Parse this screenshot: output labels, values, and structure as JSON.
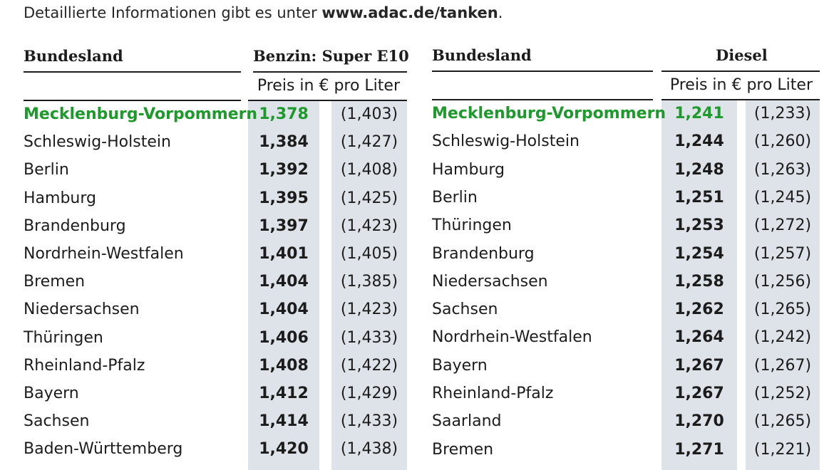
{
  "intro": {
    "prefix": "Detaillierte Informationen gibt es unter ",
    "link": "www.adac.de/tanken",
    "suffix": "."
  },
  "benzin": {
    "state_header": "Bundesland",
    "fuel_header": "Benzin: Super E10",
    "unit": "Preis in € pro Liter",
    "rows": [
      {
        "state": "Mecklenburg-Vorpommern",
        "price": "1,378",
        "previous": "(1,403)"
      },
      {
        "state": "Schleswig-Holstein",
        "price": "1,384",
        "previous": "(1,427)"
      },
      {
        "state": "Berlin",
        "price": "1,392",
        "previous": "(1,408)"
      },
      {
        "state": "Hamburg",
        "price": "1,395",
        "previous": "(1,425)"
      },
      {
        "state": "Brandenburg",
        "price": "1,397",
        "previous": "(1,423)"
      },
      {
        "state": "Nordrhein-Westfalen",
        "price": "1,401",
        "previous": "(1,405)"
      },
      {
        "state": "Bremen",
        "price": "1,404",
        "previous": "(1,385)"
      },
      {
        "state": "Niedersachsen",
        "price": "1,404",
        "previous": "(1,423)"
      },
      {
        "state": "Thüringen",
        "price": "1,406",
        "previous": "(1,433)"
      },
      {
        "state": "Rheinland-Pfalz",
        "price": "1,408",
        "previous": "(1,422)"
      },
      {
        "state": "Bayern",
        "price": "1,412",
        "previous": "(1,429)"
      },
      {
        "state": "Sachsen",
        "price": "1,414",
        "previous": "(1,433)"
      },
      {
        "state": "Baden-Württemberg",
        "price": "1,420",
        "previous": "(1,438)"
      }
    ]
  },
  "diesel": {
    "state_header": "Bundesland",
    "fuel_header": "Diesel",
    "unit": "Preis in € pro Liter",
    "rows": [
      {
        "state": "Mecklenburg-Vorpommern",
        "price": "1,241",
        "previous": "(1,233)"
      },
      {
        "state": "Schleswig-Holstein",
        "price": "1,244",
        "previous": "(1,260)"
      },
      {
        "state": "Hamburg",
        "price": "1,248",
        "previous": "(1,263)"
      },
      {
        "state": "Berlin",
        "price": "1,251",
        "previous": "(1,245)"
      },
      {
        "state": "Thüringen",
        "price": "1,253",
        "previous": "(1,272)"
      },
      {
        "state": "Brandenburg",
        "price": "1,254",
        "previous": "(1,257)"
      },
      {
        "state": "Niedersachsen",
        "price": "1,258",
        "previous": "(1,256)"
      },
      {
        "state": "Sachsen",
        "price": "1,262",
        "previous": "(1,265)"
      },
      {
        "state": "Nordrhein-Westfalen",
        "price": "1,264",
        "previous": "(1,242)"
      },
      {
        "state": "Bayern",
        "price": "1,267",
        "previous": "(1,267)"
      },
      {
        "state": "Rheinland-Pfalz",
        "price": "1,267",
        "previous": "(1,252)"
      },
      {
        "state": "Saarland",
        "price": "1,270",
        "previous": "(1,265)"
      },
      {
        "state": "Bremen",
        "price": "1,271",
        "previous": "(1,221)"
      }
    ]
  },
  "colors": {
    "highlight": "#1e9a2d",
    "column_shade": "#dde3e8",
    "text": "#1c1c1c"
  }
}
